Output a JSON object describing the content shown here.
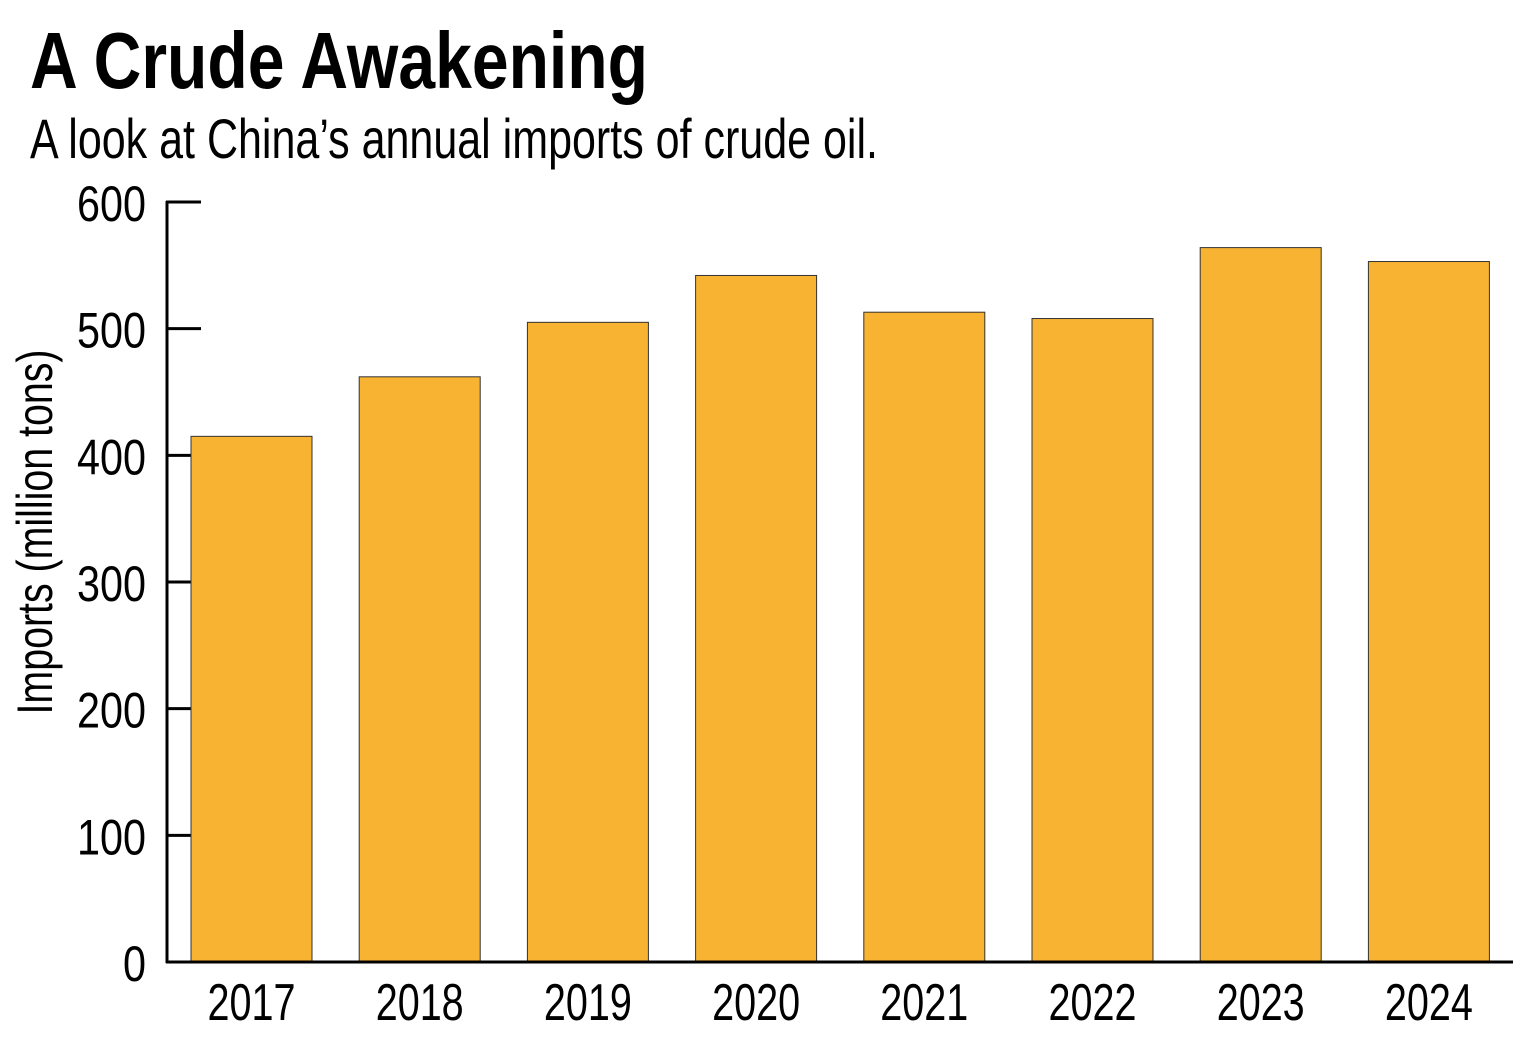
{
  "chart_data": {
    "type": "bar",
    "title": "A Crude Awakening",
    "subtitle": "A look at China’s annual imports of crude oil.",
    "xlabel": "",
    "ylabel": "Imports (million tons)",
    "categories": [
      "2017",
      "2018",
      "2019",
      "2020",
      "2021",
      "2022",
      "2023",
      "2024"
    ],
    "values": [
      415,
      462,
      505,
      542,
      513,
      508,
      564,
      553
    ],
    "ylim": [
      0,
      600
    ],
    "yticks": [
      0,
      100,
      200,
      300,
      400,
      500,
      600
    ],
    "grid": false,
    "bar_color": "#F8B332"
  }
}
